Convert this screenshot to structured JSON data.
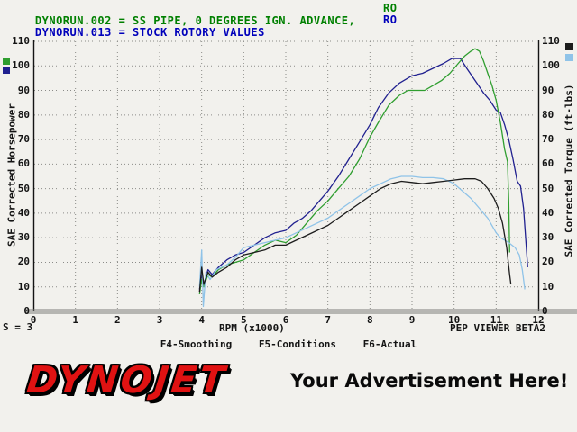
{
  "header": {
    "runs": [
      {
        "text": "DYNORUN.002 = SS PIPE, 0 DEGREES IGN. ADVANCE,",
        "tag": "RO",
        "color": "#008000"
      },
      {
        "text": "DYNORUN.013 = STOCK ROTORY VALUES",
        "tag": "RO",
        "color": "#0000bb"
      }
    ]
  },
  "chart_data": {
    "type": "line",
    "xlabel": "RPM (x1000)",
    "ylabel_left": "SAE Corrected Horsepower",
    "ylabel_right": "SAE Corrected Torque (ft-lbs)",
    "xlim": [
      0,
      12
    ],
    "ylim_left": [
      0,
      110
    ],
    "ylim_right": [
      0,
      110
    ],
    "x_ticks": [
      0,
      1,
      2,
      3,
      4,
      5,
      6,
      7,
      8,
      9,
      10,
      11,
      12
    ],
    "y_ticks": [
      0,
      10,
      20,
      30,
      40,
      50,
      60,
      70,
      80,
      90,
      100,
      110
    ],
    "grid": "dotted",
    "legend": {
      "left": [
        "#2f9e2f",
        "#20208f"
      ],
      "right": [
        "#1c1c1c",
        "#8fc3e8"
      ]
    },
    "series": [
      {
        "id": "hp-dynorun-013",
        "name": "DYNORUN.013 Horsepower",
        "axis": "left",
        "color": "#20208f",
        "points": [
          [
            3.95,
            9
          ],
          [
            4.0,
            15
          ],
          [
            4.05,
            11
          ],
          [
            4.15,
            17
          ],
          [
            4.25,
            15
          ],
          [
            4.4,
            18
          ],
          [
            4.6,
            21
          ],
          [
            4.8,
            23
          ],
          [
            5.0,
            24
          ],
          [
            5.25,
            27
          ],
          [
            5.5,
            30
          ],
          [
            5.75,
            32
          ],
          [
            6.0,
            33
          ],
          [
            6.2,
            36
          ],
          [
            6.4,
            38
          ],
          [
            6.6,
            41
          ],
          [
            6.8,
            45
          ],
          [
            7.0,
            49
          ],
          [
            7.25,
            55
          ],
          [
            7.5,
            62
          ],
          [
            7.75,
            69
          ],
          [
            8.0,
            76
          ],
          [
            8.2,
            83
          ],
          [
            8.45,
            89
          ],
          [
            8.7,
            93
          ],
          [
            9.0,
            96
          ],
          [
            9.25,
            97
          ],
          [
            9.5,
            99
          ],
          [
            9.75,
            101
          ],
          [
            9.95,
            103
          ],
          [
            10.15,
            103
          ],
          [
            10.3,
            99
          ],
          [
            10.5,
            94
          ],
          [
            10.7,
            89
          ],
          [
            10.85,
            86
          ],
          [
            11.0,
            82
          ],
          [
            11.1,
            81
          ],
          [
            11.2,
            76
          ],
          [
            11.3,
            70
          ],
          [
            11.4,
            62
          ],
          [
            11.5,
            53
          ],
          [
            11.58,
            51
          ],
          [
            11.65,
            42
          ],
          [
            11.7,
            30
          ],
          [
            11.75,
            18
          ]
        ]
      },
      {
        "id": "hp-dynorun-002",
        "name": "DYNORUN.002 Horsepower",
        "axis": "left",
        "color": "#2f9e2f",
        "points": [
          [
            3.95,
            7
          ],
          [
            4.0,
            13
          ],
          [
            4.05,
            10
          ],
          [
            4.15,
            15
          ],
          [
            4.25,
            14
          ],
          [
            4.4,
            17
          ],
          [
            4.6,
            19
          ],
          [
            4.8,
            20
          ],
          [
            5.0,
            21
          ],
          [
            5.25,
            24
          ],
          [
            5.5,
            27
          ],
          [
            5.75,
            29
          ],
          [
            6.0,
            28
          ],
          [
            6.25,
            31
          ],
          [
            6.5,
            36
          ],
          [
            6.75,
            41
          ],
          [
            7.0,
            45
          ],
          [
            7.25,
            50
          ],
          [
            7.5,
            55
          ],
          [
            7.75,
            62
          ],
          [
            8.0,
            71
          ],
          [
            8.2,
            77
          ],
          [
            8.45,
            84
          ],
          [
            8.7,
            88
          ],
          [
            8.9,
            90
          ],
          [
            9.1,
            90
          ],
          [
            9.3,
            90
          ],
          [
            9.5,
            92
          ],
          [
            9.7,
            94
          ],
          [
            9.9,
            97
          ],
          [
            10.1,
            101
          ],
          [
            10.25,
            104
          ],
          [
            10.4,
            106
          ],
          [
            10.5,
            107
          ],
          [
            10.6,
            106
          ],
          [
            10.7,
            102
          ],
          [
            10.8,
            97
          ],
          [
            10.9,
            92
          ],
          [
            11.0,
            86
          ],
          [
            11.1,
            77
          ],
          [
            11.2,
            66
          ],
          [
            11.27,
            61
          ],
          [
            11.3,
            45
          ],
          [
            11.32,
            24
          ]
        ]
      },
      {
        "id": "tq-dynorun-013",
        "name": "DYNORUN.013 Torque",
        "axis": "right",
        "color": "#8fc3e8",
        "points": [
          [
            3.95,
            10
          ],
          [
            4.0,
            25
          ],
          [
            4.04,
            2
          ],
          [
            4.1,
            16
          ],
          [
            4.2,
            13
          ],
          [
            4.35,
            17
          ],
          [
            4.6,
            19
          ],
          [
            4.8,
            22
          ],
          [
            5.0,
            26
          ],
          [
            5.25,
            27
          ],
          [
            5.5,
            28
          ],
          [
            5.75,
            29
          ],
          [
            6.0,
            30
          ],
          [
            6.25,
            32
          ],
          [
            6.5,
            34
          ],
          [
            6.75,
            36
          ],
          [
            7.0,
            38
          ],
          [
            7.25,
            41
          ],
          [
            7.5,
            44
          ],
          [
            7.75,
            47
          ],
          [
            8.0,
            50
          ],
          [
            8.25,
            52
          ],
          [
            8.5,
            54
          ],
          [
            8.75,
            55
          ],
          [
            9.0,
            55
          ],
          [
            9.25,
            54.5
          ],
          [
            9.5,
            54.5
          ],
          [
            9.75,
            54
          ],
          [
            10.0,
            52
          ],
          [
            10.2,
            49
          ],
          [
            10.4,
            46
          ],
          [
            10.6,
            42
          ],
          [
            10.8,
            38
          ],
          [
            11.0,
            32
          ],
          [
            11.1,
            30
          ],
          [
            11.3,
            28
          ],
          [
            11.45,
            26
          ],
          [
            11.55,
            23
          ],
          [
            11.62,
            17
          ],
          [
            11.68,
            9
          ]
        ]
      },
      {
        "id": "tq-dynorun-002",
        "name": "DYNORUN.002 Torque",
        "axis": "right",
        "color": "#1c1c1c",
        "points": [
          [
            3.95,
            8
          ],
          [
            4.0,
            18
          ],
          [
            4.05,
            11
          ],
          [
            4.15,
            16
          ],
          [
            4.25,
            14
          ],
          [
            4.4,
            16
          ],
          [
            4.6,
            18
          ],
          [
            4.8,
            21
          ],
          [
            5.0,
            23
          ],
          [
            5.25,
            24
          ],
          [
            5.5,
            25
          ],
          [
            5.75,
            27
          ],
          [
            6.0,
            27
          ],
          [
            6.25,
            29
          ],
          [
            6.5,
            31
          ],
          [
            6.75,
            33
          ],
          [
            7.0,
            35
          ],
          [
            7.25,
            38
          ],
          [
            7.5,
            41
          ],
          [
            7.75,
            44
          ],
          [
            8.0,
            47
          ],
          [
            8.25,
            50
          ],
          [
            8.5,
            52
          ],
          [
            8.75,
            53
          ],
          [
            9.0,
            52.5
          ],
          [
            9.25,
            52
          ],
          [
            9.5,
            52.5
          ],
          [
            9.75,
            53
          ],
          [
            10.0,
            53.5
          ],
          [
            10.25,
            54
          ],
          [
            10.5,
            54
          ],
          [
            10.65,
            53
          ],
          [
            10.8,
            50
          ],
          [
            10.95,
            46
          ],
          [
            11.05,
            42
          ],
          [
            11.15,
            36
          ],
          [
            11.25,
            26
          ],
          [
            11.32,
            15
          ],
          [
            11.35,
            11
          ]
        ]
      }
    ]
  },
  "footer": {
    "status": "S = 3",
    "viewer": "PEP VIEWER BETA2",
    "fkeys": [
      "F4-Smoothing",
      "F5-Conditions",
      "F6-Actual"
    ]
  },
  "banner": {
    "logo_text": "DYNOJET",
    "ad_text": "Your Advertisement Here!",
    "logo_color": "#e01212"
  }
}
